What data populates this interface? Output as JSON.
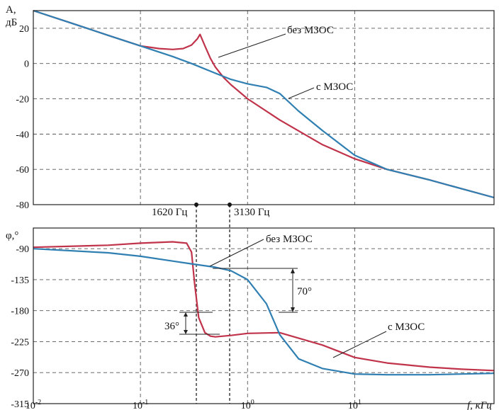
{
  "colors": {
    "with_feedback": "#2f7fb2",
    "without_feedback": "#c0334a",
    "grid": "#555555"
  },
  "labels": {
    "top_ylabel_line1": "A,",
    "top_ylabel_line2": "дБ",
    "bottom_ylabel": "φ,°",
    "xlabel": "f, кГц",
    "freq1": "1620 Гц",
    "freq2": "3130 Гц",
    "top_bez": "без МЗОС",
    "top_s": "с МЗОС",
    "bot_bez": "без МЗОС",
    "bot_s": "с МЗОС",
    "dim70": "70°",
    "dim36": "36°"
  },
  "chart_data": [
    {
      "type": "line",
      "xscale": "log",
      "xlim": [
        0.01,
        200
      ],
      "ylim": [
        -80,
        30
      ],
      "yticks": [
        20,
        0,
        -20,
        -40,
        -60,
        -80
      ],
      "grid": true,
      "series": [
        {
          "name": "без МЗОС",
          "x": [
            0.01,
            0.02,
            0.05,
            0.1,
            0.15,
            0.2,
            0.25,
            0.3,
            0.34,
            0.36,
            0.4,
            0.45,
            0.5,
            0.6,
            0.7,
            1,
            2,
            5,
            10,
            20,
            50,
            100,
            200
          ],
          "y": [
            30,
            24,
            16,
            10,
            8.5,
            8,
            8.5,
            10.5,
            14,
            16.5,
            10,
            3,
            -2,
            -8,
            -12,
            -20,
            -32,
            -46,
            -54,
            -60,
            -66,
            -71,
            -76
          ]
        },
        {
          "name": "с МЗОС",
          "x": [
            0.01,
            0.02,
            0.05,
            0.1,
            0.2,
            0.3,
            0.5,
            0.7,
            1,
            1.5,
            2,
            3,
            5,
            10,
            20,
            50,
            100,
            200
          ],
          "y": [
            30,
            24,
            16,
            10,
            4,
            0,
            -5.5,
            -9,
            -11.5,
            -13.5,
            -17,
            -27,
            -38,
            -52,
            -60,
            -66,
            -71,
            -76
          ]
        }
      ]
    },
    {
      "type": "line",
      "xscale": "log",
      "xlim": [
        0.01,
        200
      ],
      "ylim": [
        -315,
        -60
      ],
      "yticks": [
        -90,
        -135,
        -180,
        -225,
        -270,
        -315
      ],
      "xticks": [
        "10-2",
        "10-1",
        "100",
        "101"
      ],
      "grid": true,
      "series": [
        {
          "name": "без МЗОС",
          "x": [
            0.01,
            0.05,
            0.1,
            0.2,
            0.27,
            0.3,
            0.32,
            0.35,
            0.4,
            0.45,
            0.5,
            0.7,
            1,
            2,
            5,
            10,
            20,
            50,
            100,
            200
          ],
          "y": [
            -88,
            -85,
            -82,
            -80,
            -82,
            -95,
            -140,
            -190,
            -212,
            -217,
            -218,
            -216,
            -213,
            -212,
            -230,
            -248,
            -256,
            -262,
            -265,
            -267
          ]
        },
        {
          "name": "с МЗОС",
          "x": [
            0.01,
            0.05,
            0.1,
            0.2,
            0.3,
            0.5,
            0.7,
            1,
            1.5,
            2,
            3,
            5,
            10,
            20,
            50,
            100,
            200
          ],
          "y": [
            -90,
            -96,
            -101,
            -108,
            -112,
            -117,
            -122,
            -135,
            -170,
            -215,
            -250,
            -264,
            -272,
            -273,
            -273,
            -272,
            -271
          ]
        }
      ]
    }
  ]
}
